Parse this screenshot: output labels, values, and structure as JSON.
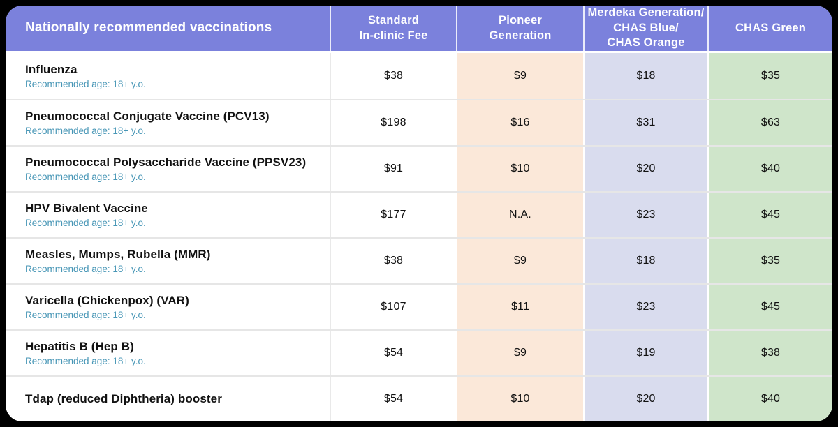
{
  "chart_data": {
    "type": "table",
    "title": "Nationally recommended vaccinations",
    "columns": [
      "Nationally recommended vaccinations",
      "Standard\nIn-clinic Fee",
      "Pioneer\nGeneration",
      "Merdeka Generation/\nCHAS Blue/\nCHAS Orange",
      "CHAS Green"
    ],
    "rows": [
      {
        "name": "Influenza",
        "age": "Recommended age: 18+ y.o.",
        "standard": "$38",
        "pioneer": "$9",
        "merdeka": "$18",
        "chas_green": "$35"
      },
      {
        "name": "Pneumococcal Conjugate Vaccine (PCV13)",
        "age": "Recommended age: 18+ y.o.",
        "standard": "$198",
        "pioneer": "$16",
        "merdeka": "$31",
        "chas_green": "$63"
      },
      {
        "name": "Pneumococcal Polysaccharide Vaccine (PPSV23)",
        "age": "Recommended age: 18+ y.o.",
        "standard": "$91",
        "pioneer": "$10",
        "merdeka": "$20",
        "chas_green": "$40"
      },
      {
        "name": "HPV Bivalent Vaccine",
        "age": "Recommended age: 18+ y.o.",
        "standard": "$177",
        "pioneer": "N.A.",
        "merdeka": "$23",
        "chas_green": "$45"
      },
      {
        "name": "Measles, Mumps, Rubella (MMR)",
        "age": "Recommended age: 18+ y.o.",
        "standard": "$38",
        "pioneer": "$9",
        "merdeka": "$18",
        "chas_green": "$35"
      },
      {
        "name": "Varicella (Chickenpox) (VAR)",
        "age": "Recommended age: 18+ y.o.",
        "standard": "$107",
        "pioneer": "$11",
        "merdeka": "$23",
        "chas_green": "$45"
      },
      {
        "name": "Hepatitis B (Hep B)",
        "age": "Recommended age: 18+ y.o.",
        "standard": "$54",
        "pioneer": "$9",
        "merdeka": "$19",
        "chas_green": "$38"
      },
      {
        "name": "Tdap (reduced Diphtheria) booster",
        "age": "",
        "standard": "$54",
        "pioneer": "$10",
        "merdeka": "$20",
        "chas_green": "$40"
      }
    ]
  },
  "colors": {
    "header_bg": "#7b81dc",
    "header_text": "#ffffff",
    "pioneer_bg": "#fbe8d9",
    "merdeka_bg": "#d9dcee",
    "chas_green_bg": "#cfe5ca",
    "age_text": "#4796b6",
    "row_divider": "#e6e6e6",
    "text": "#111111",
    "frame_bg": "#000000"
  }
}
